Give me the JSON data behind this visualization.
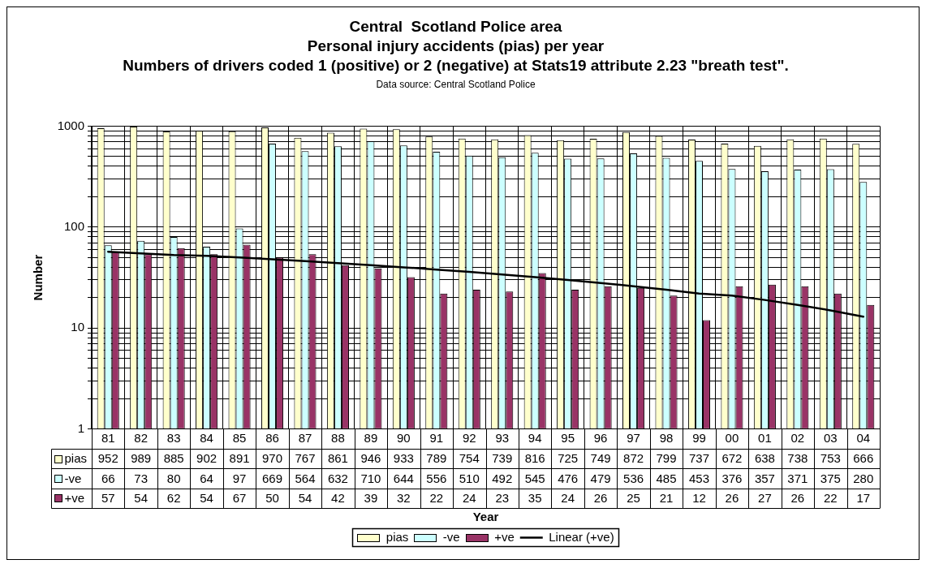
{
  "chart_data": {
    "type": "bar",
    "title": "Central  Scotland Police area\nPersonal injury accidents (pias) per year\nNumbers of drivers coded 1 (positive) or 2 (negative) at Stats19 attribute 2.23 \"breath test\".",
    "annotations": [
      "Data source: Central Scotland Police",
      "Year"
    ],
    "ylabel": "Number",
    "categories": [
      "81",
      "82",
      "83",
      "84",
      "85",
      "86",
      "87",
      "88",
      "89",
      "90",
      "91",
      "92",
      "93",
      "94",
      "95",
      "96",
      "97",
      "98",
      "99",
      "00",
      "01",
      "02",
      "03",
      "04"
    ],
    "series": [
      {
        "name": "pias",
        "color": "#ffffcc",
        "values": [
          952,
          989,
          885,
          902,
          891,
          970,
          767,
          861,
          946,
          933,
          789,
          754,
          739,
          816,
          725,
          749,
          872,
          799,
          737,
          672,
          638,
          738,
          753,
          666
        ],
        "value_labels": [
          "952",
          "989",
          "885",
          "902",
          "891",
          "970",
          "767",
          "861",
          "946",
          "933",
          "789",
          "754",
          "739",
          "816",
          "725",
          "749",
          "872",
          "799",
          "737",
          "672",
          "638",
          "738",
          "753",
          "666"
        ]
      },
      {
        "name": "-ve",
        "color": "#ccffff",
        "values": [
          66,
          73,
          80,
          64,
          97,
          669,
          564,
          632,
          710,
          644,
          556,
          510,
          492,
          545,
          476,
          479,
          536,
          485,
          453,
          376,
          357,
          371,
          375,
          280
        ],
        "value_labels": [
          "66",
          "73",
          "80",
          "64",
          "97",
          "669",
          "564",
          "632",
          "710",
          "644",
          "556",
          "510",
          "492",
          "545",
          "476",
          "479",
          "536",
          "485",
          "453",
          "376",
          "357",
          "371",
          "375",
          "280"
        ]
      },
      {
        "name": "+ve",
        "color": "#993366",
        "values": [
          57,
          54,
          62,
          54,
          67,
          50,
          54,
          42,
          39,
          32,
          22,
          24,
          23,
          35,
          24,
          26,
          25,
          21,
          12,
          26,
          27,
          26,
          22,
          17
        ],
        "value_labels": [
          "57",
          "54",
          "62",
          "54",
          "67",
          "50",
          "54",
          "42",
          "39",
          "32",
          "22",
          "24",
          "23",
          "35",
          "24",
          "26",
          "25",
          "21",
          "12",
          "26",
          "27",
          "26",
          "22",
          "17"
        ]
      },
      {
        "name": "Linear (+ve)",
        "type": "line",
        "color": "#000000",
        "values": [
          57,
          55,
          53,
          52,
          50,
          48,
          46,
          44,
          42,
          40,
          38,
          36,
          34,
          32,
          30,
          28,
          26,
          24,
          22,
          21,
          19,
          17,
          15,
          13
        ]
      }
    ],
    "log": "y",
    "ylim": [
      1,
      1000
    ],
    "yticks": [
      1,
      {
        "value": 2,
        "label": null
      },
      {
        "value": 3,
        "label": null
      },
      {
        "value": 4,
        "label": null
      },
      {
        "value": 5,
        "label": null
      },
      {
        "value": 6,
        "label": null
      },
      {
        "value": 7,
        "label": null
      },
      {
        "value": 8,
        "label": null
      },
      {
        "value": 9,
        "label": null
      },
      10,
      {
        "value": 20,
        "label": null
      },
      {
        "value": 30,
        "label": null
      },
      {
        "value": 40,
        "label": null
      },
      {
        "value": 50,
        "label": null
      },
      {
        "value": 60,
        "label": null
      },
      {
        "value": 70,
        "label": null
      },
      {
        "value": 80,
        "label": null
      },
      {
        "value": 90,
        "label": null
      },
      100,
      {
        "value": 200,
        "label": null
      },
      {
        "value": 300,
        "label": null
      },
      {
        "value": 400,
        "label": null
      },
      {
        "value": 500,
        "label": null
      },
      {
        "value": 600,
        "label": null
      },
      {
        "value": 700,
        "label": null
      },
      {
        "value": 800,
        "label": null
      },
      {
        "value": 900,
        "label": null
      },
      1000
    ],
    "grid": true,
    "legend": "bottom"
  }
}
